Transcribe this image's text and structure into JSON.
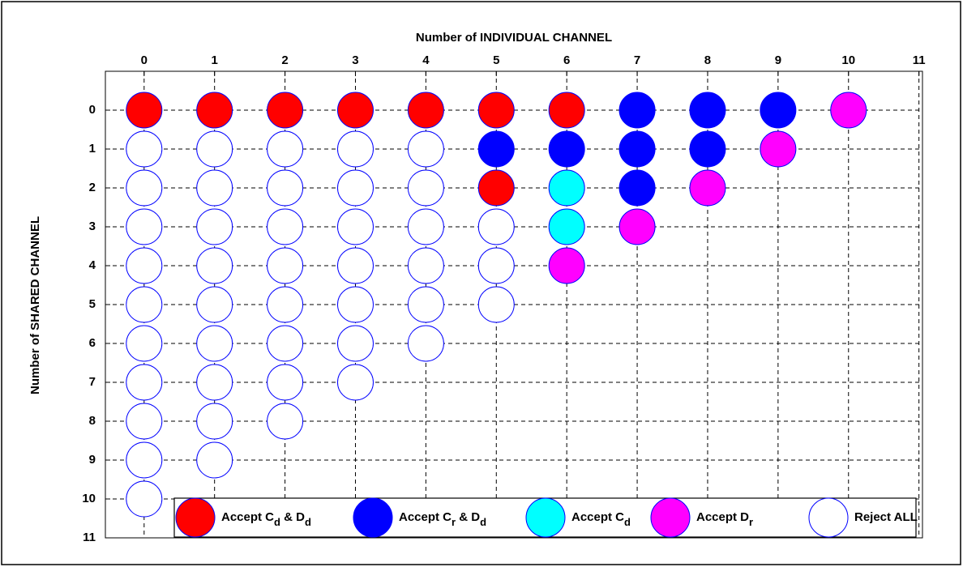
{
  "chart_data": {
    "type": "scatter",
    "xlabel": "Number of INDIVIDUAL CHANNEL",
    "ylabel": "Number of SHARED CHANNEL",
    "xlim": [
      -0.55,
      11.05
    ],
    "ylim": [
      -1,
      11
    ],
    "xticks": [
      0,
      1,
      2,
      3,
      4,
      5,
      6,
      7,
      8,
      9,
      10,
      11
    ],
    "yticks": [
      0,
      1,
      2,
      3,
      4,
      5,
      6,
      7,
      8,
      9,
      10,
      11
    ],
    "x_axis_position": "top",
    "y_inverted": true,
    "grid": true,
    "legend": "bottom",
    "series": [
      {
        "name": "Accept Cd & Dd",
        "color": "#ff0000",
        "x": [
          0,
          1,
          2,
          3,
          4,
          5,
          6,
          5
        ],
        "y": [
          0,
          0,
          0,
          0,
          0,
          0,
          0,
          2
        ]
      },
      {
        "name": "Accept Cr & Dd",
        "color": "#0000ff",
        "x": [
          7,
          8,
          9,
          5,
          6,
          7,
          8,
          7
        ],
        "y": [
          0,
          0,
          0,
          1,
          1,
          1,
          1,
          2
        ]
      },
      {
        "name": "Accept Cd",
        "color": "#00ffff",
        "x": [
          6,
          6
        ],
        "y": [
          2,
          3
        ]
      },
      {
        "name": "Accept Dr",
        "color": "#ff00ff",
        "x": [
          10,
          9,
          8,
          7,
          6
        ],
        "y": [
          0,
          1,
          2,
          3,
          4
        ]
      },
      {
        "name": "Reject ALL",
        "color": "#ffffff",
        "x": [
          0,
          0,
          0,
          0,
          0,
          0,
          0,
          0,
          0,
          0,
          1,
          1,
          1,
          1,
          1,
          1,
          1,
          1,
          1,
          2,
          2,
          2,
          2,
          2,
          2,
          2,
          2,
          3,
          3,
          3,
          3,
          3,
          3,
          3,
          4,
          4,
          4,
          4,
          4,
          4,
          5,
          5,
          5
        ],
        "y": [
          1,
          2,
          3,
          4,
          5,
          6,
          7,
          8,
          9,
          10,
          1,
          2,
          3,
          4,
          5,
          6,
          7,
          8,
          9,
          1,
          2,
          3,
          4,
          5,
          6,
          7,
          8,
          1,
          2,
          3,
          4,
          5,
          6,
          7,
          1,
          2,
          3,
          4,
          5,
          6,
          3,
          4,
          5
        ]
      }
    ]
  }
}
